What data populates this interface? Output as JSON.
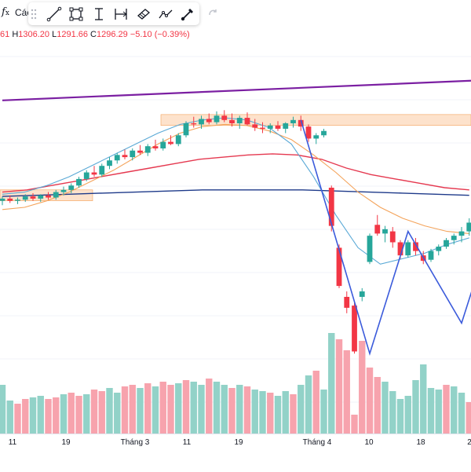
{
  "topbar": {
    "fx_label": "Các",
    "tools": [
      {
        "name": "trend-line-icon"
      },
      {
        "name": "rectangle-icon"
      },
      {
        "name": "text-cursor-icon"
      },
      {
        "name": "range-icon"
      },
      {
        "name": "eraser-icon"
      },
      {
        "name": "path-icon"
      },
      {
        "name": "brush-icon"
      }
    ],
    "redo_icon": "redo-icon"
  },
  "ohlc": {
    "open_tail": "61",
    "high_key": "H",
    "high": "1306.20",
    "low_key": "L",
    "low": "1291.66",
    "close_key": "C",
    "close": "1296.29",
    "change": "−5.10 (−0.39%)"
  },
  "colors": {
    "up": "#26a69a",
    "down": "#f23645",
    "up_volume": "#92d2c8",
    "down_volume": "#f7a3ad",
    "ma_short": "#5aa9d6",
    "ma_mid": "#f4a35a",
    "ma_long": "#e53950",
    "ma_200": "#1e3a8a",
    "trendline": "#7b1fa2",
    "pattern": "#3b5bdb"
  },
  "x_axis": [
    "11",
    "19",
    "Tháng 3",
    "11",
    "19",
    "Tháng 4",
    "10",
    "18",
    "2"
  ],
  "chart_data": {
    "type": "candlestick",
    "candles": [
      [
        1228,
        1232,
        1224,
        1230
      ],
      [
        1230,
        1233,
        1226,
        1228
      ],
      [
        1228,
        1231,
        1225,
        1229
      ],
      [
        1229,
        1234,
        1227,
        1232
      ],
      [
        1232,
        1235,
        1228,
        1230
      ],
      [
        1230,
        1234,
        1227,
        1233
      ],
      [
        1233,
        1236,
        1229,
        1231
      ],
      [
        1231,
        1238,
        1229,
        1236
      ],
      [
        1236,
        1241,
        1233,
        1238
      ],
      [
        1238,
        1244,
        1235,
        1242
      ],
      [
        1242,
        1250,
        1240,
        1248
      ],
      [
        1248,
        1256,
        1246,
        1254
      ],
      [
        1254,
        1260,
        1250,
        1252
      ],
      [
        1252,
        1262,
        1250,
        1260
      ],
      [
        1260,
        1268,
        1257,
        1265
      ],
      [
        1265,
        1272,
        1262,
        1270
      ],
      [
        1270,
        1275,
        1266,
        1268
      ],
      [
        1268,
        1276,
        1265,
        1274
      ],
      [
        1274,
        1279,
        1270,
        1272
      ],
      [
        1272,
        1280,
        1269,
        1278
      ],
      [
        1278,
        1284,
        1274,
        1276
      ],
      [
        1276,
        1285,
        1274,
        1282
      ],
      [
        1282,
        1288,
        1279,
        1280
      ],
      [
        1280,
        1290,
        1278,
        1288
      ],
      [
        1288,
        1301,
        1286,
        1299
      ],
      [
        1299,
        1305,
        1295,
        1298
      ],
      [
        1298,
        1306,
        1294,
        1303
      ],
      [
        1303,
        1308,
        1298,
        1300
      ],
      [
        1300,
        1310,
        1298,
        1306
      ],
      [
        1306,
        1311,
        1300,
        1302
      ],
      [
        1302,
        1308,
        1296,
        1299
      ],
      [
        1299,
        1306,
        1294,
        1304
      ],
      [
        1304,
        1309,
        1297,
        1298
      ],
      [
        1298,
        1303,
        1292,
        1295
      ],
      [
        1295,
        1300,
        1290,
        1294
      ],
      [
        1294,
        1299,
        1290,
        1297
      ],
      [
        1297,
        1301,
        1292,
        1294
      ],
      [
        1294,
        1300,
        1290,
        1299
      ],
      [
        1299,
        1305,
        1295,
        1302
      ],
      [
        1302,
        1306,
        1292,
        1296
      ],
      [
        1296,
        1298,
        1282,
        1285
      ],
      [
        1285,
        1290,
        1280,
        1288
      ],
      [
        1288,
        1294,
        1286,
        1292
      ],
      [
        1240,
        1242,
        1200,
        1205
      ],
      [
        1185,
        1188,
        1148,
        1150
      ],
      [
        1140,
        1145,
        1125,
        1130
      ],
      [
        1132,
        1135,
        1088,
        1090
      ],
      [
        1140,
        1148,
        1136,
        1145
      ],
      [
        1172,
        1198,
        1170,
        1196
      ],
      [
        1206,
        1215,
        1196,
        1198
      ],
      [
        1198,
        1205,
        1190,
        1202
      ],
      [
        1200,
        1204,
        1185,
        1190
      ],
      [
        1190,
        1192,
        1175,
        1178
      ],
      [
        1178,
        1192,
        1176,
        1190
      ],
      [
        1190,
        1194,
        1178,
        1182
      ],
      [
        1178,
        1182,
        1170,
        1173
      ],
      [
        1174,
        1184,
        1172,
        1182
      ],
      [
        1182,
        1188,
        1178,
        1186
      ],
      [
        1186,
        1194,
        1184,
        1192
      ],
      [
        1192,
        1198,
        1188,
        1196
      ],
      [
        1196,
        1204,
        1190,
        1200
      ],
      [
        1200,
        1212,
        1196,
        1208
      ]
    ],
    "volume": [
      [
        62,
        1
      ],
      [
        42,
        1
      ],
      [
        38,
        0
      ],
      [
        44,
        0
      ],
      [
        46,
        1
      ],
      [
        48,
        1
      ],
      [
        44,
        0
      ],
      [
        46,
        0
      ],
      [
        50,
        1
      ],
      [
        52,
        0
      ],
      [
        48,
        0
      ],
      [
        50,
        1
      ],
      [
        56,
        0
      ],
      [
        54,
        0
      ],
      [
        58,
        1
      ],
      [
        52,
        1
      ],
      [
        60,
        0
      ],
      [
        62,
        0
      ],
      [
        58,
        1
      ],
      [
        64,
        0
      ],
      [
        60,
        1
      ],
      [
        66,
        0
      ],
      [
        62,
        0
      ],
      [
        64,
        1
      ],
      [
        68,
        0
      ],
      [
        66,
        1
      ],
      [
        62,
        1
      ],
      [
        70,
        0
      ],
      [
        66,
        1
      ],
      [
        62,
        1
      ],
      [
        58,
        0
      ],
      [
        62,
        1
      ],
      [
        60,
        0
      ],
      [
        56,
        1
      ],
      [
        54,
        1
      ],
      [
        52,
        0
      ],
      [
        48,
        1
      ],
      [
        54,
        1
      ],
      [
        50,
        0
      ],
      [
        62,
        1
      ],
      [
        74,
        1
      ],
      [
        80,
        0
      ],
      [
        56,
        1
      ],
      [
        128,
        1
      ],
      [
        120,
        0
      ],
      [
        106,
        0
      ],
      [
        24,
        0
      ],
      [
        118,
        0
      ],
      [
        84,
        0
      ],
      [
        72,
        0
      ],
      [
        66,
        1
      ],
      [
        54,
        1
      ],
      [
        44,
        1
      ],
      [
        48,
        1
      ],
      [
        68,
        1
      ],
      [
        88,
        1
      ],
      [
        58,
        1
      ],
      [
        56,
        1
      ],
      [
        62,
        0
      ],
      [
        60,
        1
      ],
      [
        52,
        1
      ],
      [
        40,
        0
      ]
    ],
    "ma_short": [
      1234,
      1236,
      1242,
      1250,
      1260,
      1270,
      1280,
      1290,
      1298,
      1302,
      1304,
      1302,
      1295,
      1280,
      1250,
      1215,
      1185,
      1170,
      1175,
      1180,
      1188,
      1194
    ],
    "ma_mid": [
      1220,
      1222,
      1228,
      1236,
      1246,
      1256,
      1268,
      1280,
      1290,
      1296,
      1298,
      1297,
      1292,
      1284,
      1270,
      1254,
      1236,
      1222,
      1212,
      1205,
      1200,
      1198
    ],
    "ma_long": [
      1236,
      1238,
      1242,
      1246,
      1250,
      1254,
      1258,
      1262,
      1266,
      1268,
      1270,
      1271,
      1270,
      1266,
      1258,
      1252,
      1248,
      1244,
      1240,
      1238
    ],
    "ma_200": [
      1232,
      1233,
      1234,
      1235,
      1236,
      1237,
      1238,
      1238,
      1238,
      1238,
      1237,
      1236,
      1235,
      1234,
      1233
    ],
    "trendline": [
      [
        0,
        1320
      ],
      [
        61,
        1338
      ]
    ],
    "pattern": [
      [
        39,
        1302
      ],
      [
        48,
        1088
      ],
      [
        53,
        1200
      ],
      [
        60,
        1116
      ],
      [
        62,
        1160
      ]
    ],
    "x_ticks": [
      "11",
      "19",
      "Tháng 3",
      "11",
      "19",
      "Tháng 4",
      "10",
      "18",
      "2"
    ]
  }
}
